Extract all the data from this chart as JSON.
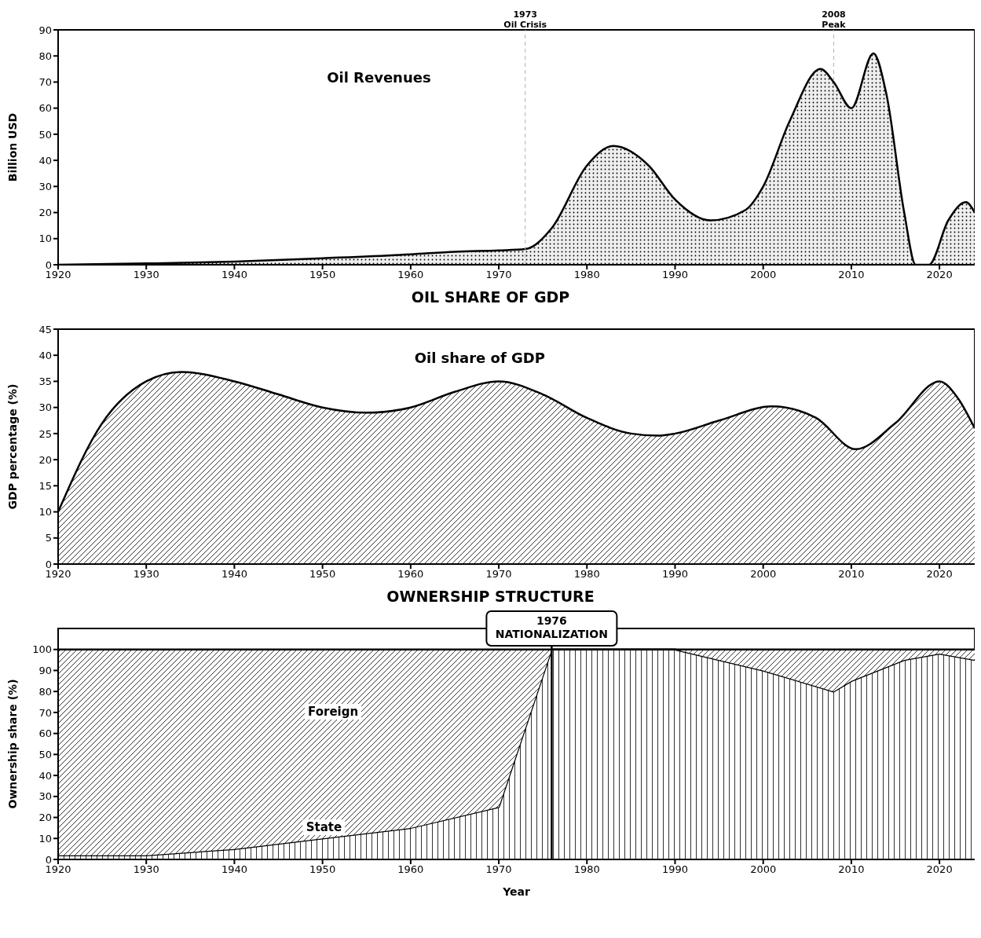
{
  "chart_data": [
    {
      "type": "area",
      "ylabel": "Billion USD",
      "x": [
        1920,
        1930,
        1940,
        1950,
        1960,
        1965,
        1970,
        1973,
        1976,
        1980,
        1983,
        1987,
        1990,
        1994,
        1998,
        2000,
        2003,
        2006.5,
        2008,
        2010,
        2012.5,
        2014,
        2016,
        2017.3,
        2018.8,
        2021,
        2023,
        2024
      ],
      "series": [
        {
          "name": "Oil Revenues",
          "color": "#000000",
          "values": [
            0,
            0.5,
            1.2,
            2.5,
            4,
            5,
            5.5,
            6,
            14,
            38,
            45.5,
            38,
            25,
            17,
            21,
            30,
            55,
            75,
            70,
            60,
            81,
            65,
            20,
            0,
            0,
            17,
            24,
            20
          ]
        }
      ],
      "xlim": [
        1920,
        2024
      ],
      "xticks": [
        1920,
        1930,
        1940,
        1950,
        1960,
        1970,
        1980,
        1990,
        2000,
        2010,
        2020
      ],
      "ylim": [
        0,
        90
      ],
      "yticks": [
        0,
        10,
        20,
        30,
        40,
        50,
        60,
        70,
        80,
        90
      ],
      "ref_lines": [
        {
          "axis": "x",
          "value": 1973,
          "label": "1973\nOil Crisis",
          "color": "#b0b0b0",
          "line_style": "dashed"
        },
        {
          "axis": "x",
          "value": 2008,
          "label": "2008\nPeak",
          "color": "#b0b0b0",
          "line_style": "dashed"
        }
      ],
      "grid": false,
      "legend": false
    },
    {
      "type": "area",
      "title": "OIL SHARE OF GDP",
      "ylabel": "GDP percentage (%)",
      "x": [
        1920,
        1925,
        1930,
        1934,
        1940,
        1945,
        1950,
        1955,
        1960,
        1965,
        1970,
        1975,
        1980,
        1985,
        1988,
        1990,
        1995,
        2001,
        2006,
        2010.5,
        2015,
        2020,
        2022,
        2024
      ],
      "series": [
        {
          "name": "Oil share of GDP",
          "color": "#000000",
          "values": [
            10,
            27,
            35,
            36.8,
            35,
            32.5,
            30,
            29,
            30,
            33,
            35,
            32.5,
            28,
            25,
            24.6,
            25,
            27.5,
            30.2,
            28,
            22,
            27,
            35,
            32,
            26
          ]
        }
      ],
      "xlim": [
        1920,
        2024
      ],
      "xticks": [
        1920,
        1930,
        1940,
        1950,
        1960,
        1970,
        1980,
        1990,
        2000,
        2010,
        2020
      ],
      "ylim": [
        0,
        45
      ],
      "yticks": [
        0,
        5,
        10,
        15,
        20,
        25,
        30,
        35,
        40,
        45
      ],
      "grid": false,
      "legend": false
    },
    {
      "type": "area",
      "title": "OWNERSHIP STRUCTURE",
      "xlabel": "Year",
      "ylabel": "Ownership share (%)",
      "stacked": true,
      "x": [
        1920,
        1930,
        1940,
        1950,
        1960,
        1970,
        1976,
        1990,
        2000,
        2008,
        2010,
        2016,
        2020,
        2024
      ],
      "series": [
        {
          "name": "State",
          "color": "#000000",
          "values": [
            2,
            2,
            5,
            10,
            15,
            25,
            100,
            100,
            90,
            80,
            85,
            95,
            98,
            95
          ]
        },
        {
          "name": "Foreign",
          "color": "#000000",
          "values": [
            98,
            98,
            95,
            90,
            85,
            75,
            0,
            0,
            10,
            20,
            15,
            5,
            2,
            5
          ]
        }
      ],
      "xlim": [
        1920,
        2024
      ],
      "xticks": [
        1920,
        1930,
        1940,
        1950,
        1960,
        1970,
        1980,
        1990,
        2000,
        2010,
        2020
      ],
      "ylim": [
        0,
        110
      ],
      "yticks": [
        0,
        10,
        20,
        30,
        40,
        50,
        60,
        70,
        80,
        90,
        100
      ],
      "ref_lines": [
        {
          "axis": "x",
          "value": 1976,
          "label": "1976\nNATIONALIZATION",
          "color": "#000000",
          "line_style": "solid"
        }
      ],
      "grid": false,
      "legend": false
    }
  ]
}
